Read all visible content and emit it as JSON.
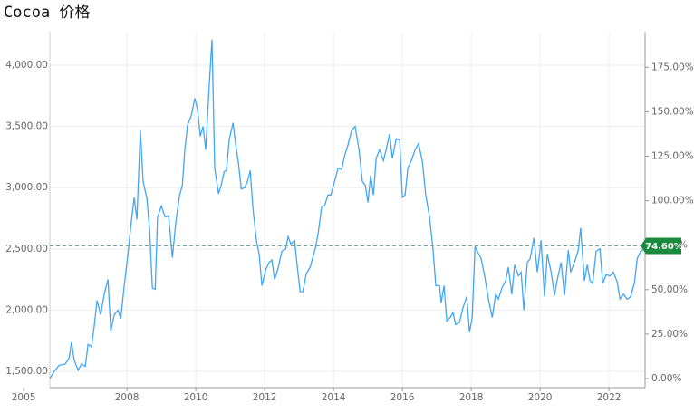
{
  "chart_data": {
    "type": "line",
    "title": "Cocoa 价格",
    "xlim": [
      2005.76,
      2023.05
    ],
    "xticks": [
      2005,
      2008,
      2010,
      2012,
      2014,
      2016,
      2018,
      2020,
      2022
    ],
    "ylim": [
      1367,
      4274
    ],
    "yticks": [
      {
        "value": 1500,
        "label": "1,500.00"
      },
      {
        "value": 2000,
        "label": "2,000.00"
      },
      {
        "value": 2500,
        "label": "2,500.00"
      },
      {
        "value": 3000,
        "label": "3,000.00"
      },
      {
        "value": 3500,
        "label": "3,500.00"
      },
      {
        "value": 4000,
        "label": "4,000.00"
      }
    ],
    "y2lim": [
      -5.1,
      195.0
    ],
    "y2ticks": [
      {
        "value": 0,
        "label": "0.00%"
      },
      {
        "value": 25,
        "label": "25.00%"
      },
      {
        "value": 50,
        "label": "50.00%"
      },
      {
        "value": 75,
        "label": "75.00%"
      },
      {
        "value": 100,
        "label": "100.00%"
      },
      {
        "value": 125,
        "label": "125.00%"
      },
      {
        "value": 150,
        "label": "150.00%"
      },
      {
        "value": 175,
        "label": "175.00%"
      }
    ],
    "grid": true,
    "reference_line": {
      "value": 74.6,
      "label": "74.60%",
      "axis": "y2",
      "color": "#1a8a3c"
    },
    "series": [
      {
        "color": "#42a5f5",
        "x": [
          2005.76,
          2005.89,
          2006.03,
          2006.21,
          2006.32,
          2006.39,
          2006.47,
          2006.58,
          2006.68,
          2006.79,
          2006.87,
          2006.97,
          2007.05,
          2007.13,
          2007.24,
          2007.34,
          2007.45,
          2007.53,
          2007.63,
          2007.74,
          2007.82,
          2007.92,
          2008.03,
          2008.11,
          2008.21,
          2008.29,
          2008.39,
          2008.47,
          2008.58,
          2008.66,
          2008.74,
          2008.82,
          2008.89,
          2009.0,
          2009.11,
          2009.21,
          2009.32,
          2009.42,
          2009.53,
          2009.61,
          2009.68,
          2009.76,
          2009.87,
          2009.97,
          2010.05,
          2010.13,
          2010.21,
          2010.29,
          2010.39,
          2010.47,
          2010.55,
          2010.66,
          2010.74,
          2010.82,
          2010.89,
          2010.97,
          2011.08,
          2011.16,
          2011.24,
          2011.32,
          2011.42,
          2011.5,
          2011.58,
          2011.66,
          2011.76,
          2011.84,
          2011.92,
          2012.03,
          2012.13,
          2012.21,
          2012.29,
          2012.39,
          2012.5,
          2012.61,
          2012.68,
          2012.76,
          2012.87,
          2012.95,
          2013.03,
          2013.11,
          2013.21,
          2013.32,
          2013.39,
          2013.47,
          2013.55,
          2013.66,
          2013.74,
          2013.84,
          2013.92,
          2014.03,
          2014.13,
          2014.24,
          2014.32,
          2014.42,
          2014.53,
          2014.63,
          2014.74,
          2014.84,
          2014.92,
          2015.0,
          2015.08,
          2015.16,
          2015.24,
          2015.34,
          2015.45,
          2015.53,
          2015.63,
          2015.71,
          2015.82,
          2015.92,
          2016.0,
          2016.08,
          2016.16,
          2016.26,
          2016.37,
          2016.47,
          2016.58,
          2016.68,
          2016.79,
          2016.89,
          2016.97,
          2017.08,
          2017.13,
          2017.21,
          2017.29,
          2017.39,
          2017.47,
          2017.55,
          2017.66,
          2017.76,
          2017.87,
          2017.95,
          2018.03,
          2018.11,
          2018.18,
          2018.29,
          2018.39,
          2018.5,
          2018.61,
          2018.71,
          2018.79,
          2018.89,
          2019.0,
          2019.08,
          2019.18,
          2019.26,
          2019.37,
          2019.45,
          2019.53,
          2019.63,
          2019.71,
          2019.82,
          2019.92,
          2020.03,
          2020.13,
          2020.21,
          2020.32,
          2020.42,
          2020.5,
          2020.61,
          2020.71,
          2020.82,
          2020.89,
          2021.0,
          2021.11,
          2021.18,
          2021.29,
          2021.37,
          2021.45,
          2021.53,
          2021.63,
          2021.74,
          2021.82,
          2021.92,
          2022.03,
          2022.13,
          2022.24,
          2022.32,
          2022.42,
          2022.53,
          2022.63,
          2022.74,
          2022.82,
          2022.92,
          2023.05
        ],
        "values": [
          1440,
          1500,
          1550,
          1560,
          1610,
          1740,
          1590,
          1510,
          1560,
          1540,
          1720,
          1700,
          1870,
          2080,
          1960,
          2130,
          2250,
          1830,
          1960,
          2000,
          1930,
          2200,
          2460,
          2680,
          2920,
          2740,
          3470,
          3050,
          2910,
          2650,
          2180,
          2170,
          2760,
          2850,
          2760,
          2770,
          2430,
          2720,
          2940,
          3020,
          3310,
          3510,
          3590,
          3730,
          3640,
          3420,
          3500,
          3310,
          3830,
          4210,
          3160,
          2950,
          3020,
          3130,
          3140,
          3390,
          3530,
          3350,
          3200,
          2990,
          3000,
          3050,
          3140,
          2830,
          2570,
          2460,
          2200,
          2330,
          2390,
          2410,
          2250,
          2340,
          2480,
          2500,
          2600,
          2540,
          2570,
          2350,
          2150,
          2150,
          2300,
          2350,
          2420,
          2500,
          2620,
          2850,
          2850,
          2940,
          2940,
          3050,
          3160,
          3150,
          3260,
          3350,
          3470,
          3500,
          3310,
          3050,
          3020,
          2880,
          3100,
          2940,
          3240,
          3310,
          3220,
          3310,
          3440,
          3240,
          3400,
          3390,
          2920,
          2940,
          3160,
          3220,
          3310,
          3360,
          3220,
          2940,
          2760,
          2500,
          2200,
          2200,
          2060,
          2200,
          1910,
          1940,
          1980,
          1880,
          1900,
          2020,
          2110,
          1820,
          1940,
          2520,
          2480,
          2420,
          2280,
          2090,
          1940,
          2130,
          2090,
          2180,
          2240,
          2350,
          2130,
          2370,
          2280,
          2310,
          2000,
          2390,
          2420,
          2590,
          2310,
          2570,
          2110,
          2460,
          2310,
          2120,
          2250,
          2390,
          2120,
          2490,
          2310,
          2390,
          2490,
          2670,
          2240,
          2370,
          2240,
          2220,
          2480,
          2500,
          2220,
          2290,
          2280,
          2310,
          2230,
          2090,
          2130,
          2090,
          2110,
          2220,
          2420,
          2480,
          2500
        ]
      }
    ]
  }
}
